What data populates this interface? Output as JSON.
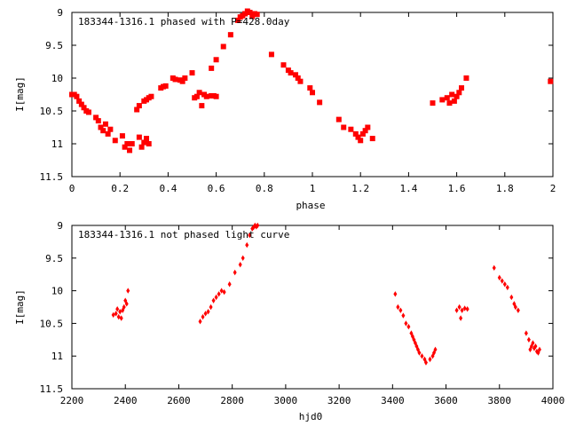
{
  "chart_data": [
    {
      "type": "scatter",
      "annotation": "183344-1316.1 phased with P=428.0day",
      "xlabel": "phase",
      "ylabel": "I[mag]",
      "xlim": [
        0,
        2
      ],
      "ylim": [
        9,
        11.5
      ],
      "y_inverted": true,
      "x_ticks": [
        "0",
        "0.2",
        "0.4",
        "0.6",
        "0.8",
        "1",
        "1.2",
        "1.4",
        "1.6",
        "1.8",
        "2"
      ],
      "y_ticks": [
        "9",
        "9.5",
        "10",
        "10.5",
        "11",
        "11.5"
      ],
      "marker_color": "#ff0000",
      "points": [
        [
          0.0,
          10.25
        ],
        [
          0.01,
          10.25
        ],
        [
          0.02,
          10.28
        ],
        [
          0.03,
          10.35
        ],
        [
          0.04,
          10.4
        ],
        [
          0.05,
          10.45
        ],
        [
          0.06,
          10.5
        ],
        [
          0.07,
          10.52
        ],
        [
          0.1,
          10.6
        ],
        [
          0.11,
          10.65
        ],
        [
          0.12,
          10.75
        ],
        [
          0.13,
          10.8
        ],
        [
          0.14,
          10.7
        ],
        [
          0.15,
          10.85
        ],
        [
          0.16,
          10.78
        ],
        [
          0.18,
          10.95
        ],
        [
          0.21,
          10.88
        ],
        [
          0.22,
          11.05
        ],
        [
          0.23,
          11.0
        ],
        [
          0.24,
          11.1
        ],
        [
          0.25,
          11.0
        ],
        [
          0.28,
          10.9
        ],
        [
          0.29,
          11.05
        ],
        [
          0.3,
          10.98
        ],
        [
          0.31,
          10.92
        ],
        [
          0.32,
          11.0
        ],
        [
          0.27,
          10.48
        ],
        [
          0.28,
          10.42
        ],
        [
          0.3,
          10.35
        ],
        [
          0.31,
          10.33
        ],
        [
          0.32,
          10.3
        ],
        [
          0.33,
          10.28
        ],
        [
          0.37,
          10.15
        ],
        [
          0.38,
          10.13
        ],
        [
          0.39,
          10.12
        ],
        [
          0.42,
          10.0
        ],
        [
          0.43,
          10.02
        ],
        [
          0.45,
          10.03
        ],
        [
          0.46,
          10.05
        ],
        [
          0.47,
          10.0
        ],
        [
          0.5,
          9.92
        ],
        [
          0.51,
          10.3
        ],
        [
          0.52,
          10.28
        ],
        [
          0.53,
          10.22
        ],
        [
          0.54,
          10.42
        ],
        [
          0.55,
          10.25
        ],
        [
          0.56,
          10.28
        ],
        [
          0.58,
          10.27
        ],
        [
          0.59,
          10.27
        ],
        [
          0.6,
          10.28
        ],
        [
          0.58,
          9.85
        ],
        [
          0.6,
          9.72
        ],
        [
          0.63,
          9.52
        ],
        [
          0.66,
          9.34
        ],
        [
          0.69,
          9.12
        ],
        [
          0.7,
          9.07
        ],
        [
          0.71,
          9.05
        ],
        [
          0.72,
          9.02
        ],
        [
          0.73,
          8.98
        ],
        [
          0.74,
          9.0
        ],
        [
          0.75,
          9.06
        ],
        [
          0.76,
          9.02
        ],
        [
          0.77,
          9.03
        ],
        [
          0.83,
          9.64
        ],
        [
          0.88,
          9.8
        ],
        [
          0.9,
          9.88
        ],
        [
          0.91,
          9.92
        ],
        [
          0.93,
          9.95
        ],
        [
          0.94,
          10.0
        ],
        [
          0.95,
          10.05
        ],
        [
          0.99,
          10.15
        ],
        [
          1.0,
          10.22
        ],
        [
          1.03,
          10.37
        ],
        [
          1.11,
          10.63
        ],
        [
          1.13,
          10.75
        ],
        [
          1.16,
          10.78
        ],
        [
          1.18,
          10.85
        ],
        [
          1.19,
          10.9
        ],
        [
          1.2,
          10.95
        ],
        [
          1.21,
          10.85
        ],
        [
          1.22,
          10.8
        ],
        [
          1.23,
          10.75
        ],
        [
          1.25,
          10.92
        ],
        [
          1.5,
          10.38
        ],
        [
          1.54,
          10.33
        ],
        [
          1.56,
          10.3
        ],
        [
          1.57,
          10.38
        ],
        [
          1.58,
          10.25
        ],
        [
          1.59,
          10.35
        ],
        [
          1.6,
          10.28
        ],
        [
          1.61,
          10.22
        ],
        [
          1.62,
          10.15
        ],
        [
          1.64,
          10.0
        ],
        [
          1.99,
          10.05
        ]
      ]
    },
    {
      "type": "scatter",
      "annotation": "183344-1316.1 not phased light curve",
      "xlabel": "hjd0",
      "ylabel": "I[mag]",
      "xlim": [
        2200,
        4000
      ],
      "ylim": [
        9,
        11.5
      ],
      "y_inverted": true,
      "x_ticks": [
        "2200",
        "2400",
        "2600",
        "2800",
        "3000",
        "3200",
        "3400",
        "3600",
        "3800",
        "4000"
      ],
      "y_ticks": [
        "9",
        "9.5",
        "10",
        "10.5",
        "11",
        "11.5"
      ],
      "marker_color": "#ff0000",
      "points": [
        [
          2355,
          10.37
        ],
        [
          2365,
          10.35
        ],
        [
          2370,
          10.28
        ],
        [
          2375,
          10.4
        ],
        [
          2380,
          10.32
        ],
        [
          2385,
          10.42
        ],
        [
          2390,
          10.3
        ],
        [
          2395,
          10.25
        ],
        [
          2400,
          10.15
        ],
        [
          2405,
          10.2
        ],
        [
          2410,
          10.0
        ],
        [
          2680,
          10.47
        ],
        [
          2690,
          10.4
        ],
        [
          2700,
          10.35
        ],
        [
          2710,
          10.32
        ],
        [
          2720,
          10.25
        ],
        [
          2730,
          10.15
        ],
        [
          2740,
          10.1
        ],
        [
          2750,
          10.05
        ],
        [
          2760,
          10.0
        ],
        [
          2770,
          10.02
        ],
        [
          2790,
          9.9
        ],
        [
          2810,
          9.72
        ],
        [
          2830,
          9.6
        ],
        [
          2840,
          9.5
        ],
        [
          2855,
          9.3
        ],
        [
          2865,
          9.15
        ],
        [
          2875,
          9.05
        ],
        [
          2880,
          9.03
        ],
        [
          2885,
          9.0
        ],
        [
          2890,
          9.02
        ],
        [
          2895,
          9.0
        ],
        [
          3410,
          10.05
        ],
        [
          3420,
          10.25
        ],
        [
          3430,
          10.3
        ],
        [
          3440,
          10.38
        ],
        [
          3450,
          10.5
        ],
        [
          3460,
          10.55
        ],
        [
          3470,
          10.65
        ],
        [
          3475,
          10.7
        ],
        [
          3480,
          10.75
        ],
        [
          3485,
          10.8
        ],
        [
          3490,
          10.85
        ],
        [
          3495,
          10.9
        ],
        [
          3500,
          10.95
        ],
        [
          3510,
          11.0
        ],
        [
          3520,
          11.05
        ],
        [
          3525,
          11.1
        ],
        [
          3540,
          11.05
        ],
        [
          3550,
          11.0
        ],
        [
          3555,
          10.95
        ],
        [
          3560,
          10.9
        ],
        [
          3640,
          10.3
        ],
        [
          3650,
          10.25
        ],
        [
          3655,
          10.42
        ],
        [
          3660,
          10.3
        ],
        [
          3670,
          10.27
        ],
        [
          3680,
          10.28
        ],
        [
          3780,
          9.65
        ],
        [
          3800,
          9.8
        ],
        [
          3810,
          9.85
        ],
        [
          3820,
          9.9
        ],
        [
          3830,
          9.95
        ],
        [
          3845,
          10.1
        ],
        [
          3855,
          10.2
        ],
        [
          3860,
          10.25
        ],
        [
          3870,
          10.3
        ],
        [
          3900,
          10.65
        ],
        [
          3910,
          10.75
        ],
        [
          3915,
          10.9
        ],
        [
          3920,
          10.85
        ],
        [
          3925,
          10.8
        ],
        [
          3930,
          10.88
        ],
        [
          3935,
          10.85
        ],
        [
          3940,
          10.93
        ],
        [
          3945,
          10.95
        ],
        [
          3950,
          10.9
        ]
      ]
    }
  ]
}
